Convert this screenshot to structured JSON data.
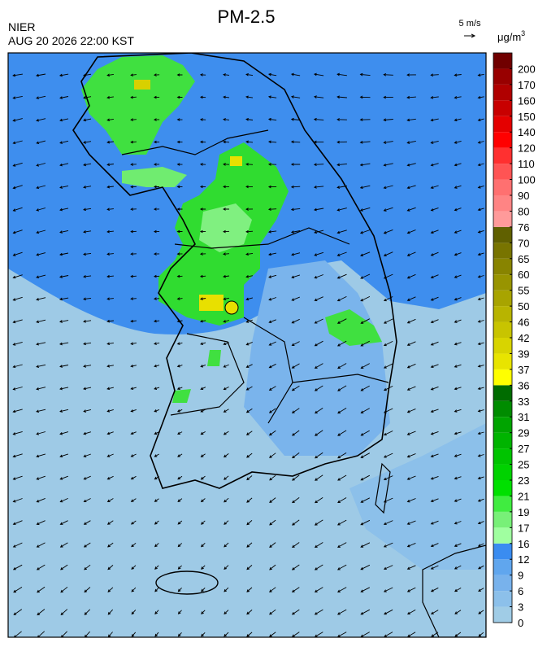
{
  "header": {
    "title": "PM-2.5",
    "agency": "NIER",
    "datetime": "AUG 20 2026 22:00 KST"
  },
  "wind_scale": {
    "label": "5 m/s"
  },
  "colorbar": {
    "unit": "μg/m",
    "unit_superscript": "3",
    "ticks": [
      0,
      3,
      6,
      9,
      12,
      16,
      17,
      19,
      21,
      23,
      25,
      27,
      29,
      31,
      33,
      36,
      37,
      39,
      42,
      46,
      50,
      55,
      60,
      65,
      70,
      76,
      80,
      90,
      100,
      110,
      120,
      140,
      150,
      160,
      170,
      200
    ],
    "colors": [
      "#a0cce6",
      "#8cc0ea",
      "#78b2ec",
      "#60a6ee",
      "#3a8cf0",
      "#a0ffa0",
      "#78f078",
      "#40ec40",
      "#00e000",
      "#00d200",
      "#00c400",
      "#00b400",
      "#00a400",
      "#008c00",
      "#006c00",
      "#ffff00",
      "#e8e400",
      "#d8d400",
      "#c8c400",
      "#b8b400",
      "#a8a400",
      "#989400",
      "#888400",
      "#787400",
      "#606000",
      "#ff9a9a",
      "#ff8484",
      "#ff7070",
      "#ff5454",
      "#ff3030",
      "#ff0000",
      "#e40000",
      "#c80000",
      "#b00000",
      "#980000",
      "#700000"
    ]
  }
}
